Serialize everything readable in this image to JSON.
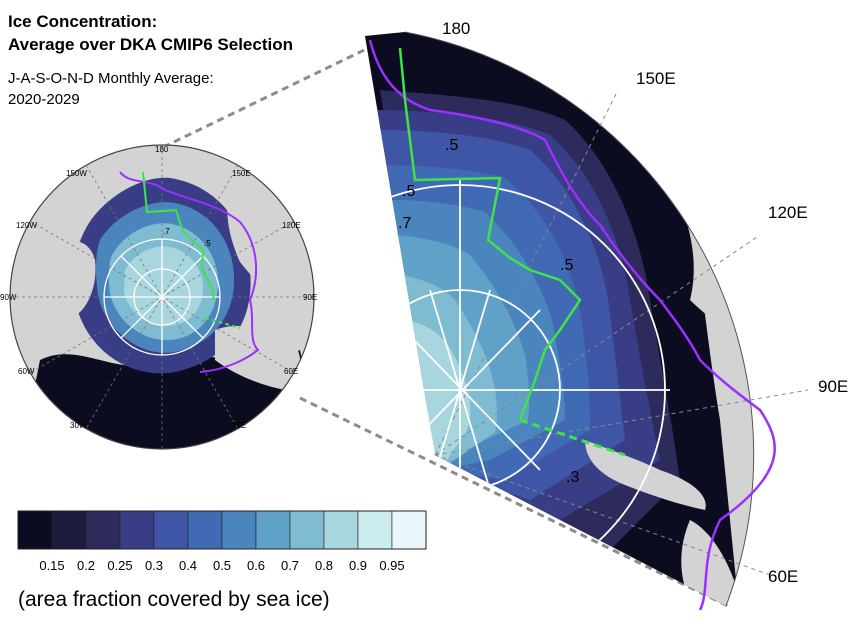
{
  "title": {
    "line1": "Ice Concentration:",
    "line2": "Average over DKA CMIP6 Selection"
  },
  "subtitle": {
    "line1": "J-A-S-O-N-D Monthly Average:",
    "line2": "2020-2029"
  },
  "small_map": {
    "longitude_labels": [
      "180",
      "150E",
      "120E",
      "90E",
      "60E",
      "30E",
      "0",
      "30W",
      "60W",
      "90W",
      "120W",
      "150W"
    ],
    "contour_labels": [
      ".7",
      ".5"
    ]
  },
  "zoom_map": {
    "longitude_labels": [
      "180",
      "150E",
      "120E",
      "90E",
      "60E"
    ],
    "contour_labels": [
      ".5",
      ".5",
      ".7",
      ".5",
      ".3"
    ]
  },
  "colorbar": {
    "colors": [
      "#0c0c20",
      "#1c1c3c",
      "#2c2b5c",
      "#393d85",
      "#3e56a5",
      "#416ab5",
      "#4a85be",
      "#5fa1c7",
      "#7fbcd1",
      "#a7d6df",
      "#cdecf0",
      "#e9f7fa"
    ],
    "tick_labels": [
      "0.15",
      "0.2",
      "0.25",
      "0.3",
      "0.4",
      "0.5",
      "0.6",
      "0.7",
      "0.8",
      "0.9",
      "0.95"
    ],
    "caption": "(area fraction covered by sea ice)"
  }
}
